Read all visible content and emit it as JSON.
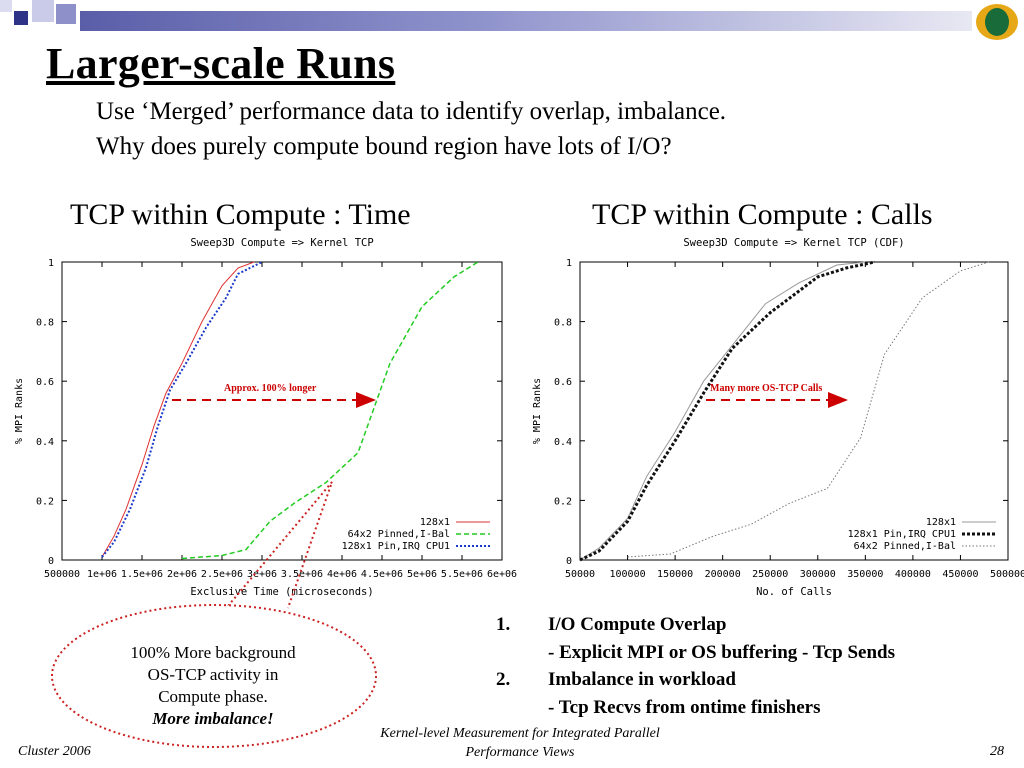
{
  "slide": {
    "title": "Larger-scale Runs",
    "subtitle_lines": [
      "Use ‘Merged’ performance data to identify overlap, imbalance.",
      "Why does purely compute bound region have lots of I/O?"
    ],
    "footer_left": "Cluster 2006",
    "footer_center_lines": [
      "Kernel-level Measurement for Integrated Parallel",
      "Performance Views"
    ],
    "page_number": "28",
    "colors": {
      "header_bar": "#6b6fb4",
      "logo_ring": "#e6a817",
      "logo_center": "#1a6b3a",
      "annotation": "#cc0000"
    }
  },
  "left_heading": "TCP within Compute : Time",
  "right_heading": "TCP within Compute : Calls",
  "annotations": {
    "left_arrow_label": "Approx. 100% longer",
    "right_arrow_label": "Many more OS-TCP Calls"
  },
  "callout": {
    "lines": [
      "100% More background",
      "OS-TCP activity in",
      "Compute phase."
    ],
    "emphasis": "More imbalance!"
  },
  "notes": [
    {
      "num": "1.",
      "text": "I/O Compute Overlap",
      "detail": "- Explicit MPI or OS buffering - Tcp Sends"
    },
    {
      "num": "2.",
      "text": "Imbalance in workload",
      "detail": "- Tcp Recvs from ontime finishers"
    }
  ],
  "chart_data": [
    {
      "type": "line",
      "title": "Sweep3D Compute => Kernel TCP",
      "xlabel": "Exclusive Time (microseconds)",
      "ylabel": "% MPI Ranks",
      "xlim": [
        500000,
        6000000
      ],
      "ylim": [
        0,
        1
      ],
      "x_tick_labels": [
        "500000",
        "1e+06",
        "1.5e+06",
        "2e+06",
        "2.5e+06",
        "3e+06",
        "3.5e+06",
        "4e+06",
        "4.5e+06",
        "5e+06",
        "5.5e+06",
        "6e+06"
      ],
      "x_ticks": [
        500000,
        1000000,
        1500000,
        2000000,
        2500000,
        3000000,
        3500000,
        4000000,
        4500000,
        5000000,
        5500000,
        6000000
      ],
      "y_tick_labels": [
        "0",
        "0.2",
        "0.4",
        "0.6",
        "0.8",
        "1"
      ],
      "y_ticks": [
        0,
        0.2,
        0.4,
        0.6,
        0.8,
        1
      ],
      "legend_position": "bottom-right",
      "series": [
        {
          "name": "128x1",
          "color": "#e03030",
          "dash": "solid",
          "points": [
            [
              1000000,
              0.01
            ],
            [
              1150000,
              0.08
            ],
            [
              1300000,
              0.17
            ],
            [
              1500000,
              0.32
            ],
            [
              1650000,
              0.45
            ],
            [
              1800000,
              0.56
            ],
            [
              2000000,
              0.66
            ],
            [
              2250000,
              0.8
            ],
            [
              2500000,
              0.92
            ],
            [
              2700000,
              0.98
            ],
            [
              2900000,
              1.0
            ]
          ]
        },
        {
          "name": "64x2 Pinned,I-Bal",
          "color": "#22cc22",
          "dash": "dashed",
          "points": [
            [
              2000000,
              0.005
            ],
            [
              2500000,
              0.015
            ],
            [
              2800000,
              0.035
            ],
            [
              3100000,
              0.13
            ],
            [
              3400000,
              0.19
            ],
            [
              3800000,
              0.26
            ],
            [
              4200000,
              0.36
            ],
            [
              4600000,
              0.66
            ],
            [
              5000000,
              0.85
            ],
            [
              5400000,
              0.95
            ],
            [
              5700000,
              1.0
            ]
          ]
        },
        {
          "name": "128x1 Pin,IRQ CPU1",
          "color": "#1a3acc",
          "dash": "dotted",
          "points": [
            [
              1000000,
              0.01
            ],
            [
              1150000,
              0.06
            ],
            [
              1350000,
              0.17
            ],
            [
              1550000,
              0.31
            ],
            [
              1700000,
              0.45
            ],
            [
              1850000,
              0.57
            ],
            [
              2050000,
              0.66
            ],
            [
              2300000,
              0.78
            ],
            [
              2550000,
              0.88
            ],
            [
              2700000,
              0.96
            ],
            [
              3000000,
              1.0
            ]
          ]
        }
      ]
    },
    {
      "type": "line",
      "title": "Sweep3D Compute => Kernel TCP (CDF)",
      "xlabel": "No. of Calls",
      "ylabel": "% MPI Ranks",
      "xlim": [
        50000,
        500000
      ],
      "ylim": [
        0,
        1
      ],
      "x_tick_labels": [
        "50000",
        "100000",
        "150000",
        "200000",
        "250000",
        "300000",
        "350000",
        "400000",
        "450000",
        "500000"
      ],
      "x_ticks": [
        50000,
        100000,
        150000,
        200000,
        250000,
        300000,
        350000,
        400000,
        450000,
        500000
      ],
      "y_tick_labels": [
        "0",
        "0.2",
        "0.4",
        "0.6",
        "0.8",
        "1"
      ],
      "y_ticks": [
        0,
        0.2,
        0.4,
        0.6,
        0.8,
        1
      ],
      "legend_position": "bottom-right",
      "series": [
        {
          "name": "128x1",
          "color": "#999999",
          "dash": "solid",
          "points": [
            [
              50000,
              0.0
            ],
            [
              70000,
              0.04
            ],
            [
              100000,
              0.14
            ],
            [
              120000,
              0.28
            ],
            [
              150000,
              0.43
            ],
            [
              180000,
              0.6
            ],
            [
              210000,
              0.72
            ],
            [
              245000,
              0.86
            ],
            [
              280000,
              0.93
            ],
            [
              320000,
              0.99
            ],
            [
              350000,
              1.0
            ]
          ]
        },
        {
          "name": "128x1 Pin,IRQ CPU1",
          "color": "#111111",
          "dash": "thick-dotted",
          "points": [
            [
              50000,
              0.0
            ],
            [
              70000,
              0.03
            ],
            [
              100000,
              0.13
            ],
            [
              120000,
              0.25
            ],
            [
              150000,
              0.4
            ],
            [
              180000,
              0.56
            ],
            [
              210000,
              0.71
            ],
            [
              250000,
              0.83
            ],
            [
              300000,
              0.95
            ],
            [
              330000,
              0.98
            ],
            [
              360000,
              1.0
            ]
          ]
        },
        {
          "name": "64x2 Pinned,I-Bal",
          "color": "#777777",
          "dash": "fine-dotted",
          "points": [
            [
              100000,
              0.01
            ],
            [
              145000,
              0.02
            ],
            [
              190000,
              0.08
            ],
            [
              230000,
              0.12
            ],
            [
              270000,
              0.19
            ],
            [
              310000,
              0.24
            ],
            [
              345000,
              0.41
            ],
            [
              370000,
              0.69
            ],
            [
              410000,
              0.88
            ],
            [
              450000,
              0.97
            ],
            [
              480000,
              1.0
            ]
          ]
        }
      ]
    }
  ]
}
